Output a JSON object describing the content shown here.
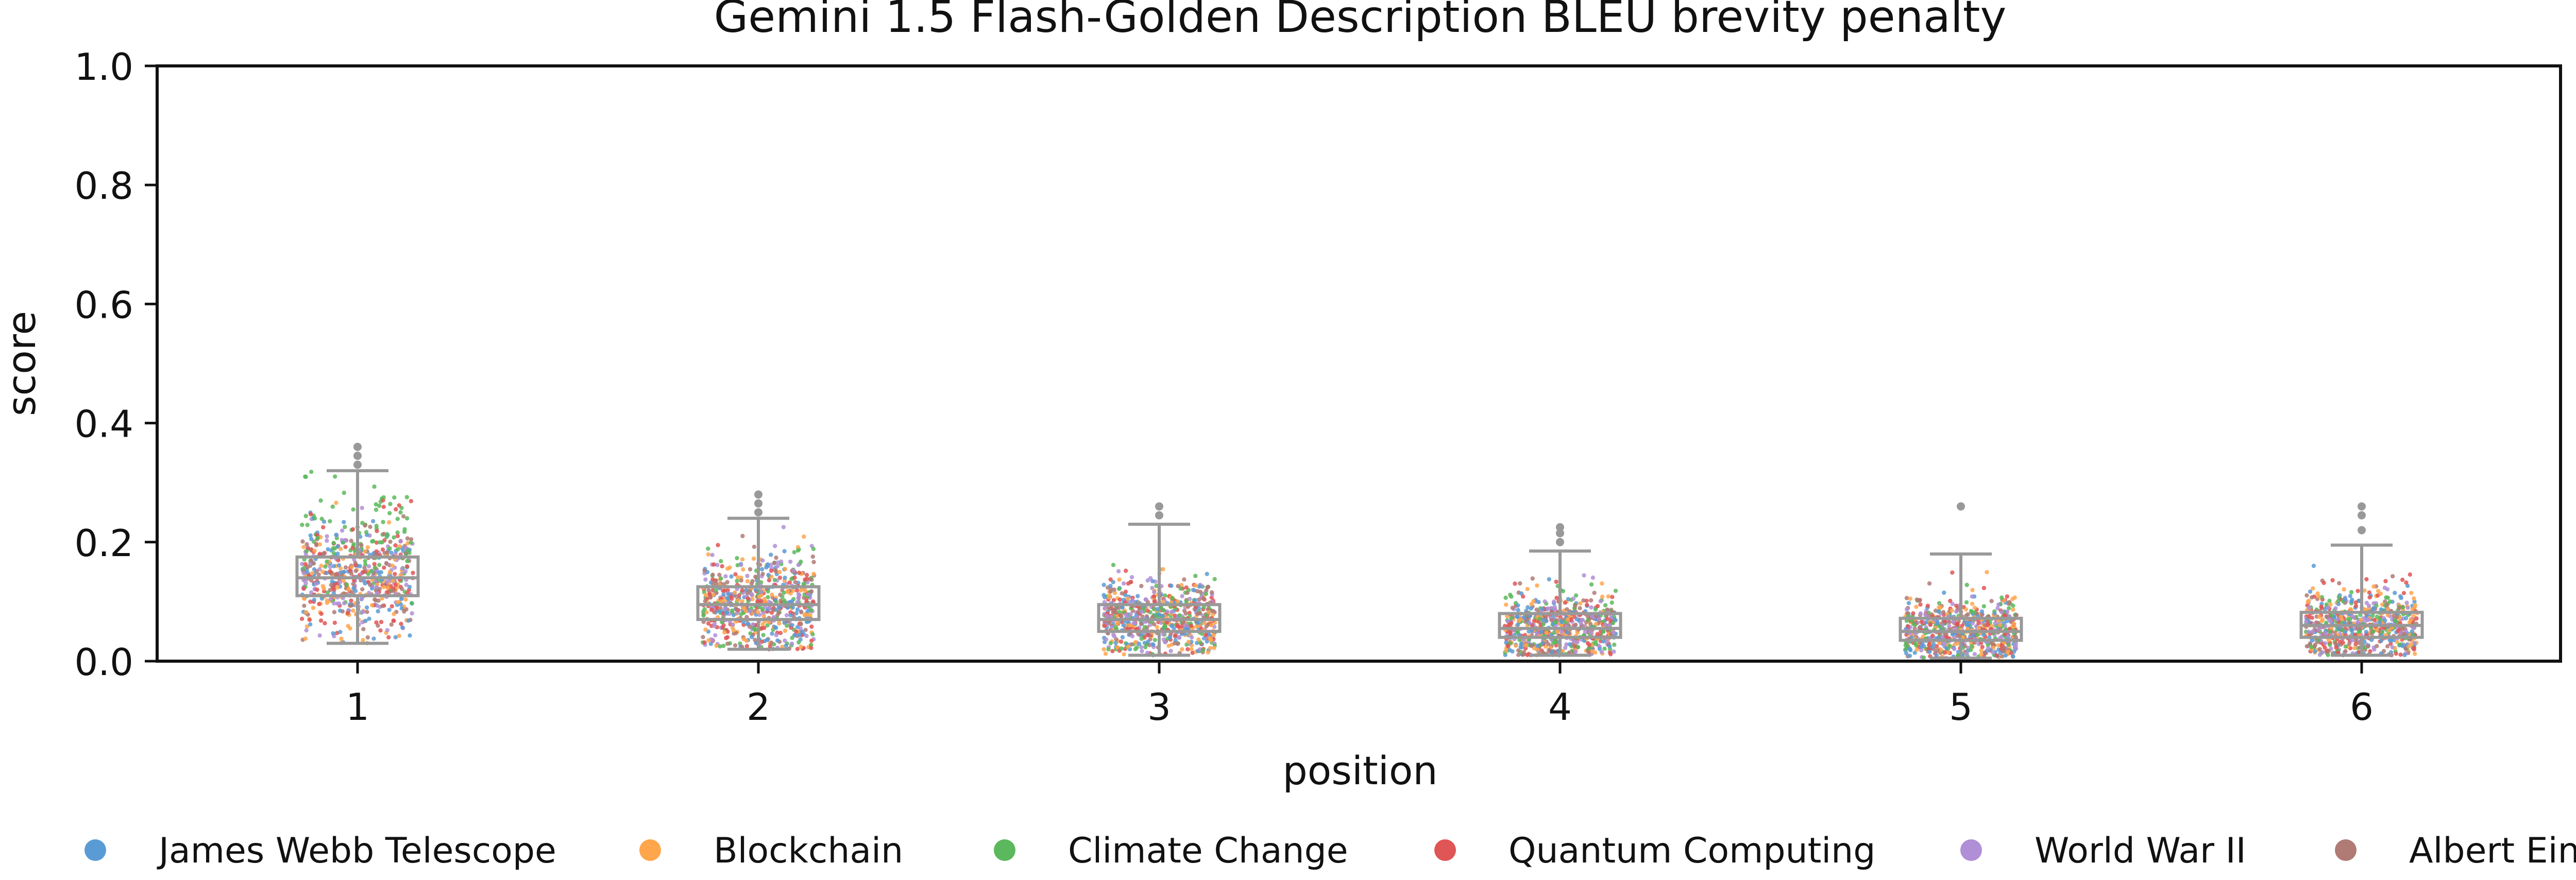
{
  "chart_data": {
    "type": "box+strip",
    "title": "Gemini 1.5 Flash-Golden Description BLEU brevity penalty",
    "xlabel": "position",
    "ylabel": "score",
    "ylim": [
      0,
      1.0
    ],
    "yticks": [
      "0.0",
      "0.2",
      "0.4",
      "0.6",
      "0.8",
      "1.0"
    ],
    "categories": [
      "1",
      "2",
      "3",
      "4",
      "5",
      "6"
    ],
    "grid": false,
    "legend_position": "bottom",
    "boxes": [
      {
        "position": "1",
        "whisker_low": 0.03,
        "q1": 0.11,
        "median": 0.14,
        "q3": 0.175,
        "whisker_high": 0.32,
        "outliers": [
          0.33,
          0.345,
          0.36
        ]
      },
      {
        "position": "2",
        "whisker_low": 0.02,
        "q1": 0.07,
        "median": 0.095,
        "q3": 0.125,
        "whisker_high": 0.24,
        "outliers": [
          0.25,
          0.265,
          0.28
        ]
      },
      {
        "position": "3",
        "whisker_low": 0.01,
        "q1": 0.05,
        "median": 0.07,
        "q3": 0.095,
        "whisker_high": 0.23,
        "outliers": [
          0.245,
          0.26
        ]
      },
      {
        "position": "4",
        "whisker_low": 0.01,
        "q1": 0.04,
        "median": 0.055,
        "q3": 0.08,
        "whisker_high": 0.185,
        "outliers": [
          0.2,
          0.215,
          0.225
        ]
      },
      {
        "position": "5",
        "whisker_low": 0.005,
        "q1": 0.035,
        "median": 0.05,
        "q3": 0.072,
        "whisker_high": 0.18,
        "outliers": [
          0.26
        ]
      },
      {
        "position": "6",
        "whisker_low": 0.01,
        "q1": 0.04,
        "median": 0.06,
        "q3": 0.082,
        "whisker_high": 0.195,
        "outliers": [
          0.22,
          0.245,
          0.26
        ]
      }
    ],
    "series": [
      {
        "name": "James Webb Telescope",
        "color": "#5b9bd5"
      },
      {
        "name": "Blockchain",
        "color": "#ffa64d"
      },
      {
        "name": "Climate Change",
        "color": "#5cb85c"
      },
      {
        "name": "Quantum Computing",
        "color": "#e05555"
      },
      {
        "name": "World War II",
        "color": "#b08fd6"
      },
      {
        "name": "Albert Einstein",
        "color": "#b07a75"
      }
    ],
    "box_color": "#999999"
  }
}
